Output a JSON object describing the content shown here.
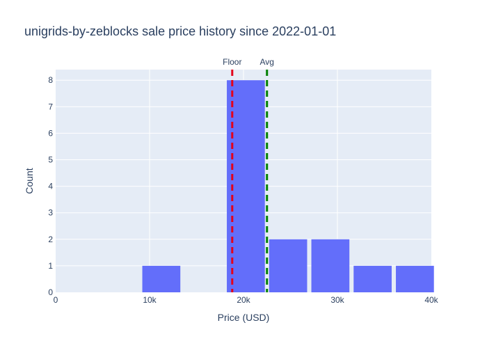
{
  "chart_data": {
    "type": "bar",
    "title": "unigrids-by-zeblocks sale price history since 2022-01-01",
    "xlabel": "Price (USD)",
    "ylabel": "Count",
    "xlim": [
      0,
      40000
    ],
    "ylim": [
      0,
      8.4
    ],
    "x_ticks": [
      {
        "value": 0,
        "label": "0"
      },
      {
        "value": 10000,
        "label": "10k"
      },
      {
        "value": 20000,
        "label": "20k"
      },
      {
        "value": 30000,
        "label": "30k"
      },
      {
        "value": 40000,
        "label": "40k"
      }
    ],
    "y_ticks": [
      0,
      1,
      2,
      3,
      4,
      5,
      6,
      7,
      8
    ],
    "bin_width": 4500,
    "bins": [
      {
        "start": 0,
        "end": 4500,
        "count": 0
      },
      {
        "start": 4500,
        "end": 9000,
        "count": 0
      },
      {
        "start": 9000,
        "end": 13500,
        "count": 1
      },
      {
        "start": 13500,
        "end": 18000,
        "count": 0
      },
      {
        "start": 18000,
        "end": 22500,
        "count": 8
      },
      {
        "start": 22500,
        "end": 27000,
        "count": 2
      },
      {
        "start": 27000,
        "end": 31500,
        "count": 2
      },
      {
        "start": 31500,
        "end": 36000,
        "count": 1
      },
      {
        "start": 36000,
        "end": 40500,
        "count": 1
      }
    ],
    "vlines": [
      {
        "label": "Floor",
        "x": 18800,
        "color": "#e3001b"
      },
      {
        "label": "Avg",
        "x": 22500,
        "color": "#008000"
      }
    ],
    "bar_color": "#636efa",
    "plot_bg": "#e5ecf6",
    "grid": true
  }
}
